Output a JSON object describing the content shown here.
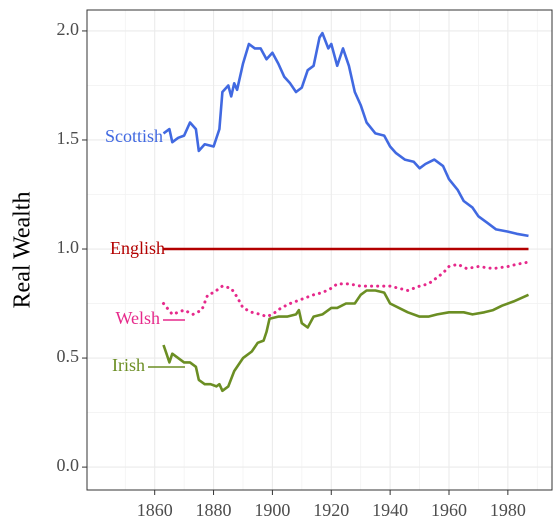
{
  "chart_data": {
    "type": "line",
    "y_label": "Real Wealth",
    "xlim": [
      1837,
      1995
    ],
    "ylim": [
      -0.105,
      2.096
    ],
    "xticks": [
      1860,
      1880,
      1900,
      1920,
      1940,
      1960,
      1980
    ],
    "yticks": [
      {
        "value": 0,
        "label": "0.0"
      },
      {
        "value": 0.5,
        "label": "0.5"
      },
      {
        "value": 1,
        "label": "1.0"
      },
      {
        "value": 1.5,
        "label": "1.5"
      },
      {
        "value": 2,
        "label": "2.0"
      }
    ],
    "grid": true,
    "series": [
      {
        "name": "Scottish",
        "color": "#4169e1",
        "style": "solid",
        "x": [
          1863,
          1865,
          1866,
          1868,
          1870,
          1872,
          1874,
          1875,
          1877,
          1880,
          1882,
          1883,
          1885,
          1886,
          1887,
          1888,
          1890,
          1892,
          1894,
          1896,
          1898,
          1900,
          1902,
          1904,
          1906,
          1908,
          1910,
          1912,
          1914,
          1916,
          1917,
          1919,
          1920,
          1922,
          1924,
          1926,
          1928,
          1930,
          1932,
          1935,
          1938,
          1940,
          1942,
          1945,
          1948,
          1950,
          1952,
          1955,
          1958,
          1960,
          1963,
          1965,
          1968,
          1970,
          1973,
          1976,
          1980,
          1983,
          1987
        ],
        "values": [
          1.53,
          1.55,
          1.49,
          1.51,
          1.52,
          1.58,
          1.55,
          1.45,
          1.48,
          1.47,
          1.55,
          1.72,
          1.75,
          1.7,
          1.76,
          1.73,
          1.85,
          1.94,
          1.92,
          1.92,
          1.87,
          1.9,
          1.85,
          1.79,
          1.76,
          1.72,
          1.74,
          1.82,
          1.84,
          1.97,
          1.99,
          1.92,
          1.94,
          1.84,
          1.92,
          1.84,
          1.72,
          1.66,
          1.58,
          1.53,
          1.52,
          1.47,
          1.44,
          1.41,
          1.4,
          1.37,
          1.39,
          1.41,
          1.38,
          1.32,
          1.27,
          1.22,
          1.19,
          1.15,
          1.12,
          1.09,
          1.08,
          1.07,
          1.06
        ]
      },
      {
        "name": "English",
        "color": "#b30000",
        "style": "solid",
        "x": [
          1863,
          1987
        ],
        "values": [
          1,
          1
        ]
      },
      {
        "name": "Welsh",
        "color": "#e6298b",
        "style": "dotted",
        "x": [
          1863,
          1866,
          1870,
          1873,
          1876,
          1878,
          1880,
          1883,
          1886,
          1888,
          1890,
          1893,
          1896,
          1898,
          1900,
          1903,
          1906,
          1910,
          1914,
          1917,
          1920,
          1922,
          1926,
          1930,
          1935,
          1940,
          1943,
          1946,
          1950,
          1953,
          1955,
          1958,
          1960,
          1963,
          1966,
          1970,
          1975,
          1980,
          1983,
          1987
        ],
        "values": [
          0.75,
          0.7,
          0.72,
          0.7,
          0.72,
          0.79,
          0.8,
          0.83,
          0.82,
          0.78,
          0.73,
          0.71,
          0.7,
          0.69,
          0.7,
          0.73,
          0.75,
          0.77,
          0.79,
          0.8,
          0.82,
          0.84,
          0.84,
          0.83,
          0.83,
          0.83,
          0.82,
          0.81,
          0.83,
          0.84,
          0.86,
          0.89,
          0.92,
          0.93,
          0.91,
          0.92,
          0.91,
          0.92,
          0.93,
          0.94
        ]
      },
      {
        "name": "Irish",
        "color": "#6b8e23",
        "style": "solid",
        "x": [
          1863,
          1864,
          1865,
          1866,
          1868,
          1870,
          1872,
          1874,
          1875,
          1877,
          1879,
          1881,
          1882,
          1883,
          1885,
          1887,
          1890,
          1893,
          1895,
          1897,
          1898,
          1899,
          1902,
          1905,
          1908,
          1909,
          1910,
          1912,
          1914,
          1917,
          1920,
          1922,
          1925,
          1928,
          1930,
          1932,
          1935,
          1938,
          1940,
          1943,
          1946,
          1950,
          1953,
          1956,
          1960,
          1965,
          1968,
          1972,
          1975,
          1978,
          1982,
          1987
        ],
        "values": [
          0.56,
          0.52,
          0.48,
          0.52,
          0.5,
          0.48,
          0.48,
          0.46,
          0.4,
          0.38,
          0.38,
          0.37,
          0.38,
          0.35,
          0.37,
          0.44,
          0.5,
          0.53,
          0.57,
          0.58,
          0.62,
          0.68,
          0.69,
          0.69,
          0.7,
          0.72,
          0.66,
          0.64,
          0.69,
          0.7,
          0.73,
          0.73,
          0.75,
          0.75,
          0.79,
          0.81,
          0.81,
          0.8,
          0.75,
          0.73,
          0.71,
          0.69,
          0.69,
          0.7,
          0.71,
          0.71,
          0.7,
          0.71,
          0.72,
          0.74,
          0.76,
          0.79
        ]
      }
    ]
  }
}
